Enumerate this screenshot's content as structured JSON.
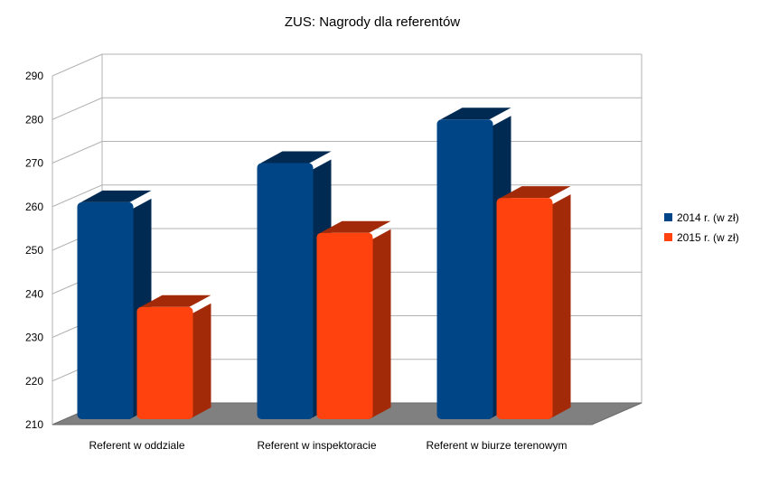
{
  "chart_data": {
    "type": "bar",
    "title": "ZUS: Nagrody dla referentów",
    "xlabel": "",
    "ylabel": "",
    "categories": [
      "Referent w oddziale",
      "Referent w inspektoracie",
      "Referent w biurze terenowym"
    ],
    "series": [
      {
        "name": "2014 r. (w zł)",
        "values": [
          261,
          270,
          280
        ],
        "color": "#004586",
        "side_color": "#002a52"
      },
      {
        "name": "2015 r. (w zł)",
        "values": [
          237,
          254,
          262
        ],
        "color": "#ff420e",
        "side_color": "#a32a09"
      }
    ],
    "ylim": [
      210,
      290
    ],
    "yticks": [
      210,
      220,
      230,
      240,
      250,
      260,
      270,
      280,
      290
    ],
    "grid": true,
    "legend_position": "right",
    "style": "3d-bar",
    "floor_color": "#808080"
  }
}
